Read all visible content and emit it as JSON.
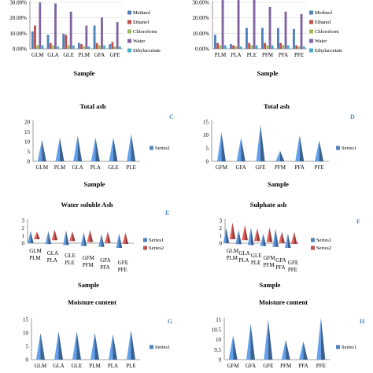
{
  "chart_data": [
    {
      "id": "A",
      "type": "bar",
      "title": "",
      "xlabel": "Sample",
      "ylabel": "",
      "ylim": [
        0,
        40
      ],
      "yticks": [
        "0.00%",
        "10.00%",
        "20.00%",
        "30.00%"
      ],
      "categories": [
        "GLM",
        "GLA",
        "GLE",
        "PLM",
        "GFA",
        "GFE"
      ],
      "series": [
        {
          "name": "Methnol",
          "color": "#4f81bd",
          "values": [
            15,
            12,
            13,
            5,
            20,
            4
          ]
        },
        {
          "name": "Ethanol",
          "color": "#c0504d",
          "values": [
            20,
            5,
            12,
            4,
            5,
            6
          ]
        },
        {
          "name": "Chloroform",
          "color": "#9bbb59",
          "values": [
            3,
            3,
            3,
            2,
            3,
            2
          ]
        },
        {
          "name": "Water",
          "color": "#8064a2",
          "values": [
            40,
            39,
            32,
            20,
            27,
            23
          ]
        },
        {
          "name": "Ethylaccetate",
          "color": "#4bacc6",
          "values": [
            3,
            2,
            3,
            2,
            3,
            2
          ]
        }
      ]
    },
    {
      "id": "B",
      "type": "bar",
      "title": "",
      "xlabel": "Sample",
      "ylabel": "",
      "ylim": [
        0,
        40
      ],
      "yticks": [
        "0.00%",
        "10.00%",
        "20.00%",
        "30.00%"
      ],
      "categories": [
        "PLM",
        "PLA",
        "PLE",
        "PFM",
        "PFA",
        "PFE"
      ],
      "series": [
        {
          "name": "Methnol",
          "color": "#4f81bd",
          "values": [
            12,
            4,
            18,
            18,
            18,
            17
          ]
        },
        {
          "name": "Ethanol",
          "color": "#c0504d",
          "values": [
            5,
            3,
            5,
            5,
            5,
            3
          ]
        },
        {
          "name": "Chloroform",
          "color": "#9bbb59",
          "values": [
            3,
            2,
            3,
            3,
            3,
            2
          ]
        },
        {
          "name": "Water",
          "color": "#8064a2",
          "values": [
            42,
            42,
            42,
            36,
            32,
            30
          ]
        },
        {
          "name": "Ethylaccetate",
          "color": "#4bacc6",
          "values": [
            3,
            2,
            3,
            3,
            3,
            2
          ]
        }
      ]
    },
    {
      "id": "C",
      "type": "bar",
      "title": "Total ash",
      "xlabel": "Sample",
      "ylabel": "",
      "ylim": [
        0,
        20
      ],
      "yticks": [
        "0",
        "5",
        "10",
        "15",
        "20"
      ],
      "categories": [
        "GLM",
        "PLM",
        "GLA",
        "PLA",
        "GLE",
        "PLE"
      ],
      "series": [
        {
          "name": "Series1",
          "color": "#4f81bd",
          "values": [
            11,
            12,
            13,
            12,
            12,
            14
          ]
        }
      ]
    },
    {
      "id": "D",
      "type": "bar",
      "title": "Total ash",
      "xlabel": "Sample",
      "ylabel": "",
      "ylim": [
        0,
        15
      ],
      "yticks": [
        "0",
        "5",
        "10",
        "15"
      ],
      "categories": [
        "GFM",
        "GFA",
        "GFE",
        "PFM",
        "PFA",
        "PFE"
      ],
      "series": [
        {
          "name": "Series1",
          "color": "#4f81bd",
          "values": [
            11,
            9,
            14,
            4,
            10,
            8
          ]
        }
      ]
    },
    {
      "id": "E",
      "type": "bar",
      "title": "Water soluble Ash",
      "xlabel": "Sample",
      "ylabel": "",
      "ylim": [
        0,
        3
      ],
      "yticks": [
        "0",
        "1",
        "2",
        "3"
      ],
      "categories": [
        "GLM PLM",
        "GLA PLA",
        "GLE PLE",
        "GFM PFM",
        "GFA PFA",
        "GFE PFE"
      ],
      "series": [
        {
          "name": "Series1",
          "color": "#4f81bd",
          "values": [
            1.6,
            1.7,
            1.9,
            1.8,
            1.7,
            1.9
          ]
        },
        {
          "name": "Series2",
          "color": "#c0504d",
          "values": [
            1.0,
            1.4,
            1.3,
            1.6,
            1.5,
            1.5
          ]
        }
      ]
    },
    {
      "id": "F",
      "type": "bar",
      "title": "Sulphate ash",
      "xlabel": "Sample",
      "ylabel": "",
      "ylim": [
        0,
        3
      ],
      "yticks": [
        "0",
        "1",
        "2",
        "3"
      ],
      "categories": [
        "GLM PLM",
        "GLA PLA",
        "GLE PLE",
        "GFM PFM",
        "GFA PFA",
        "GFE PFE"
      ],
      "series": [
        {
          "name": "Series1",
          "color": "#4f81bd",
          "values": [
            2.0,
            1.9,
            2.3,
            1.6,
            2.4,
            1.9
          ]
        },
        {
          "name": "Series2",
          "color": "#c0504d",
          "values": [
            2.2,
            2.0,
            1.7,
            1.9,
            1.5,
            1.6
          ]
        }
      ]
    },
    {
      "id": "G",
      "type": "bar",
      "title": "Moisture content",
      "xlabel": "",
      "ylabel": "",
      "ylim": [
        0,
        15
      ],
      "yticks": [
        "0",
        "5",
        "10",
        "15"
      ],
      "categories": [
        "GLM",
        "GLA",
        "GLE",
        "PLM",
        "PLA",
        "PLE"
      ],
      "series": [
        {
          "name": "Series1",
          "color": "#4f81bd",
          "values": [
            10,
            10.5,
            10.5,
            10,
            9.5,
            11
          ]
        }
      ]
    },
    {
      "id": "H",
      "type": "bar",
      "title": "Moisture content",
      "xlabel": "",
      "ylabel": "",
      "ylim": [
        9,
        11
      ],
      "yticks": [
        "9",
        "9.5",
        "10",
        "10.5",
        "11"
      ],
      "categories": [
        "GFM",
        "GFA",
        "GFE",
        "PFM",
        "PFA",
        "PFE"
      ],
      "series": [
        {
          "name": "Series1",
          "color": "#4f81bd",
          "values": [
            10.2,
            10.8,
            11,
            10,
            9.9,
            11.1
          ]
        }
      ]
    }
  ]
}
